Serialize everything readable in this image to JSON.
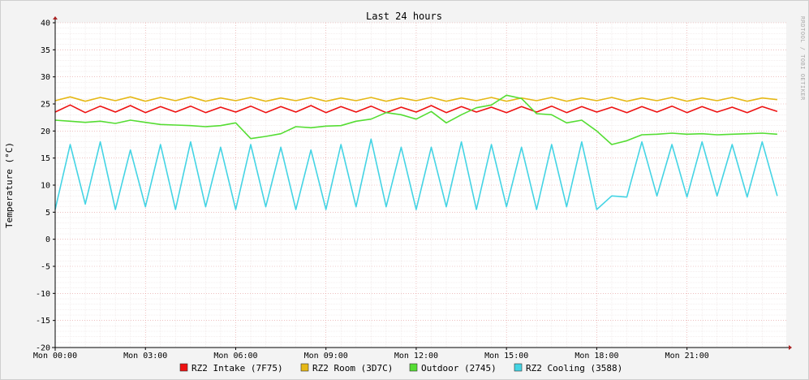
{
  "chart_data": {
    "type": "line",
    "title": "Last 24 hours",
    "ylabel": "Temperature (°C)",
    "xlabel": "",
    "watermark": "RRDTOOL / TOBI OETIKER",
    "ylim": [
      -20,
      40
    ],
    "yticks": [
      40,
      35,
      30,
      25,
      20,
      15,
      10,
      5,
      0,
      -5,
      -10,
      -15,
      -20
    ],
    "xlim_hours": [
      0,
      24.3
    ],
    "xticks": [
      {
        "h": 0,
        "label": "Mon 00:00"
      },
      {
        "h": 3,
        "label": "Mon 03:00"
      },
      {
        "h": 6,
        "label": "Mon 06:00"
      },
      {
        "h": 9,
        "label": "Mon 09:00"
      },
      {
        "h": 12,
        "label": "Mon 12:00"
      },
      {
        "h": 15,
        "label": "Mon 15:00"
      },
      {
        "h": 18,
        "label": "Mon 18:00"
      },
      {
        "h": 21,
        "label": "Mon 21:00"
      }
    ],
    "grid": true,
    "legend_position": "bottom",
    "series": [
      {
        "name": "RZ2 Intake (7F75)",
        "color": "#ee1111",
        "x": [
          0,
          0.5,
          1,
          1.5,
          2,
          2.5,
          3,
          3.5,
          4,
          4.5,
          5,
          5.5,
          6,
          6.5,
          7,
          7.5,
          8,
          8.5,
          9,
          9.5,
          10,
          10.5,
          11,
          11.5,
          12,
          12.5,
          13,
          13.5,
          14,
          14.5,
          15,
          15.5,
          16,
          16.5,
          17,
          17.5,
          18,
          18.5,
          19,
          19.5,
          20,
          20.5,
          21,
          21.5,
          22,
          22.5,
          23,
          23.5,
          24
        ],
        "y": [
          23.5,
          24.8,
          23.4,
          24.6,
          23.5,
          24.7,
          23.4,
          24.5,
          23.5,
          24.6,
          23.4,
          24.4,
          23.5,
          24.6,
          23.4,
          24.5,
          23.5,
          24.7,
          23.4,
          24.5,
          23.5,
          24.6,
          23.4,
          24.4,
          23.5,
          24.7,
          23.4,
          24.5,
          23.5,
          24.4,
          23.4,
          24.5,
          23.5,
          24.6,
          23.4,
          24.5,
          23.5,
          24.4,
          23.4,
          24.5,
          23.5,
          24.6,
          23.4,
          24.5,
          23.5,
          24.4,
          23.4,
          24.5,
          23.6
        ]
      },
      {
        "name": "RZ2 Room (3D7C)",
        "color": "#e6b816",
        "x": [
          0,
          0.5,
          1,
          1.5,
          2,
          2.5,
          3,
          3.5,
          4,
          4.5,
          5,
          5.5,
          6,
          6.5,
          7,
          7.5,
          8,
          8.5,
          9,
          9.5,
          10,
          10.5,
          11,
          11.5,
          12,
          12.5,
          13,
          13.5,
          14,
          14.5,
          15,
          15.5,
          16,
          16.5,
          17,
          17.5,
          18,
          18.5,
          19,
          19.5,
          20,
          20.5,
          21,
          21.5,
          22,
          22.5,
          23,
          23.5,
          24
        ],
        "y": [
          25.6,
          26.3,
          25.5,
          26.2,
          25.6,
          26.3,
          25.5,
          26.2,
          25.6,
          26.3,
          25.5,
          26.1,
          25.6,
          26.2,
          25.5,
          26.1,
          25.6,
          26.2,
          25.5,
          26.1,
          25.6,
          26.2,
          25.5,
          26.1,
          25.6,
          26.2,
          25.5,
          26.1,
          25.6,
          26.2,
          25.5,
          26.1,
          25.6,
          26.2,
          25.5,
          26.1,
          25.6,
          26.2,
          25.5,
          26.1,
          25.6,
          26.2,
          25.5,
          26.1,
          25.6,
          26.2,
          25.5,
          26.1,
          25.8
        ]
      },
      {
        "name": "Outdoor (2745)",
        "color": "#55dd33",
        "x": [
          0,
          0.5,
          1,
          1.5,
          2,
          2.5,
          3,
          3.5,
          4,
          4.5,
          5,
          5.5,
          6,
          6.5,
          7,
          7.5,
          8,
          8.5,
          9,
          9.5,
          10,
          10.5,
          11,
          11.5,
          12,
          12.5,
          13,
          13.5,
          14,
          14.5,
          15,
          15.5,
          16,
          16.5,
          17,
          17.5,
          18,
          18.5,
          19,
          19.5,
          20,
          20.5,
          21,
          21.5,
          22,
          22.5,
          23,
          23.5,
          24
        ],
        "y": [
          22.0,
          21.8,
          21.6,
          21.8,
          21.4,
          22.0,
          21.6,
          21.2,
          21.1,
          21.0,
          20.8,
          21.0,
          21.5,
          18.6,
          19.0,
          19.5,
          20.8,
          20.6,
          20.9,
          21.0,
          21.8,
          22.2,
          23.4,
          23.0,
          22.2,
          23.6,
          21.5,
          23.0,
          24.3,
          24.8,
          26.6,
          26.0,
          23.2,
          23.0,
          21.5,
          22.0,
          20.0,
          17.5,
          18.2,
          19.3,
          19.4,
          19.6,
          19.4,
          19.5,
          19.3,
          19.4,
          19.5,
          19.6,
          19.4
        ]
      },
      {
        "name": "RZ2 Cooling (3588)",
        "color": "#44d4e4",
        "x": [
          0,
          0.5,
          1,
          1.5,
          2,
          2.5,
          3,
          3.5,
          4,
          4.5,
          5,
          5.5,
          6,
          6.5,
          7,
          7.5,
          8,
          8.5,
          9,
          9.5,
          10,
          10.5,
          11,
          11.5,
          12,
          12.5,
          13,
          13.5,
          14,
          14.5,
          15,
          15.5,
          16,
          16.5,
          17,
          17.5,
          18,
          18.5,
          19,
          19.5,
          20,
          20.5,
          21,
          21.5,
          22,
          22.5,
          23,
          23.5,
          24
        ],
        "y": [
          5.5,
          17.5,
          6.5,
          18.0,
          5.5,
          16.5,
          6.0,
          17.5,
          5.5,
          18.0,
          6.0,
          17.0,
          5.5,
          17.5,
          6.0,
          17.0,
          5.5,
          16.5,
          5.5,
          17.5,
          6.0,
          18.5,
          6.0,
          17.0,
          5.5,
          17.0,
          6.0,
          18.0,
          5.5,
          17.5,
          6.0,
          17.0,
          5.5,
          17.5,
          6.0,
          18.0,
          5.5,
          8.0,
          7.8,
          18.0,
          8.0,
          17.5,
          7.8,
          18.0,
          8.0,
          17.5,
          7.8,
          18.0,
          8.0
        ]
      }
    ]
  }
}
